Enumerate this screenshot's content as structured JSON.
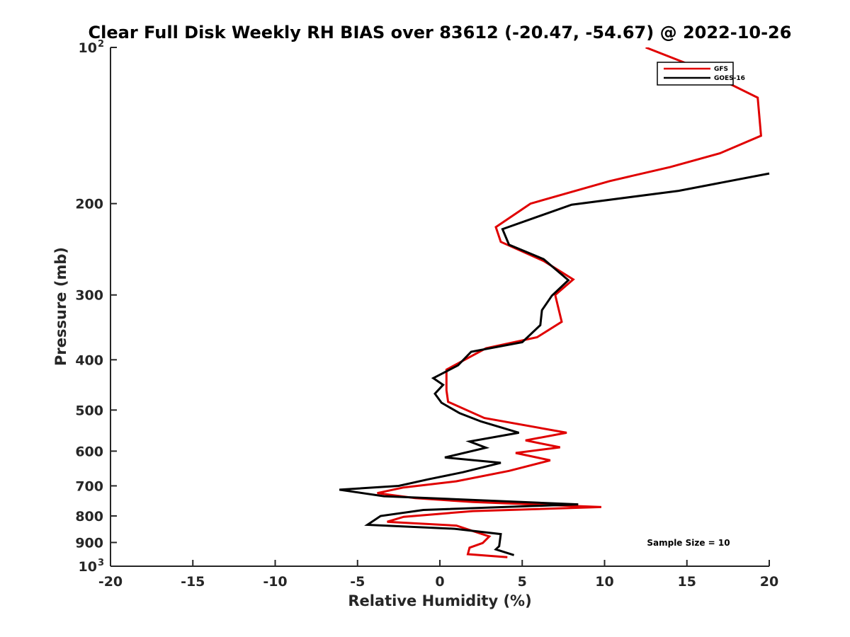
{
  "chart_data": {
    "type": "line",
    "title": "Clear Full Disk Weekly RH BIAS over 83612 (-20.47, -54.67) @ 2022-10-26",
    "xlabel": "Relative Humidity (%)",
    "ylabel": "Pressure (mb)",
    "xlim": [
      -20,
      20
    ],
    "ylim": [
      100,
      1000
    ],
    "y_scale": "log",
    "y_reversed": true,
    "x_ticks": [
      "-20",
      "-15",
      "-10",
      "-5",
      "0",
      "5",
      "10",
      "15",
      "20"
    ],
    "y_ticks": [
      {
        "value": 100,
        "base": "10",
        "exp": "2"
      },
      {
        "value": 200,
        "base": "200",
        "exp": ""
      },
      {
        "value": 300,
        "base": "300",
        "exp": ""
      },
      {
        "value": 400,
        "base": "400",
        "exp": ""
      },
      {
        "value": 500,
        "base": "500",
        "exp": ""
      },
      {
        "value": 600,
        "base": "600",
        "exp": ""
      },
      {
        "value": 700,
        "base": "700",
        "exp": ""
      },
      {
        "value": 800,
        "base": "800",
        "exp": ""
      },
      {
        "value": 900,
        "base": "900",
        "exp": ""
      },
      {
        "value": 1000,
        "base": "10",
        "exp": "3"
      }
    ],
    "legend_position": "top-right",
    "annotation": "Sample Size = 10",
    "series": [
      {
        "name": "GFS",
        "color": "#e00000",
        "points": [
          [
            12.5,
            100
          ],
          [
            15.5,
            109
          ],
          [
            19.3,
            125
          ],
          [
            19.5,
            148
          ],
          [
            17.0,
            160
          ],
          [
            14.0,
            170
          ],
          [
            10.3,
            181
          ],
          [
            5.5,
            200
          ],
          [
            3.4,
            222
          ],
          [
            3.7,
            237
          ],
          [
            6.3,
            258
          ],
          [
            8.1,
            280
          ],
          [
            7.0,
            300
          ],
          [
            7.4,
            338
          ],
          [
            5.9,
            362
          ],
          [
            2.8,
            380
          ],
          [
            0.4,
            418
          ],
          [
            0.4,
            458
          ],
          [
            0.5,
            482
          ],
          [
            2.7,
            518
          ],
          [
            7.7,
            553
          ],
          [
            5.2,
            572
          ],
          [
            7.3,
            590
          ],
          [
            4.6,
            605
          ],
          [
            6.7,
            625
          ],
          [
            4.2,
            655
          ],
          [
            1.0,
            686
          ],
          [
            -2.2,
            705
          ],
          [
            -3.8,
            723
          ],
          [
            -1.5,
            739
          ],
          [
            2.0,
            752
          ],
          [
            9.8,
            769
          ],
          [
            2.0,
            783
          ],
          [
            -2.2,
            803
          ],
          [
            -3.2,
            821
          ],
          [
            1.0,
            835
          ],
          [
            3.0,
            876
          ],
          [
            2.6,
            902
          ],
          [
            1.8,
            921
          ],
          [
            1.7,
            948
          ],
          [
            4.1,
            961
          ]
        ]
      },
      {
        "name": "GOES-16",
        "color": "#000000",
        "points": [
          [
            20.0,
            175
          ],
          [
            14.5,
            189
          ],
          [
            8.0,
            201
          ],
          [
            3.8,
            224
          ],
          [
            4.2,
            240
          ],
          [
            6.3,
            256
          ],
          [
            7.8,
            281
          ],
          [
            6.8,
            301
          ],
          [
            6.2,
            321
          ],
          [
            6.1,
            343
          ],
          [
            5.0,
            370
          ],
          [
            1.9,
            386
          ],
          [
            1.1,
            410
          ],
          [
            -0.4,
            434
          ],
          [
            0.2,
            447
          ],
          [
            -0.3,
            465
          ],
          [
            0.1,
            484
          ],
          [
            1.2,
            507
          ],
          [
            2.5,
            526
          ],
          [
            4.8,
            553
          ],
          [
            1.8,
            575
          ],
          [
            2.8,
            591
          ],
          [
            0.3,
            617
          ],
          [
            3.7,
            632
          ],
          [
            1.4,
            659
          ],
          [
            -0.7,
            680
          ],
          [
            -2.5,
            700
          ],
          [
            -6.1,
            712
          ],
          [
            -3.4,
            733
          ],
          [
            8.4,
            760
          ],
          [
            -1.0,
            779
          ],
          [
            -3.6,
            800
          ],
          [
            -4.4,
            832
          ],
          [
            0.9,
            847
          ],
          [
            3.7,
            867
          ],
          [
            3.6,
            915
          ],
          [
            3.4,
            928
          ],
          [
            4.5,
            952
          ]
        ]
      }
    ]
  }
}
